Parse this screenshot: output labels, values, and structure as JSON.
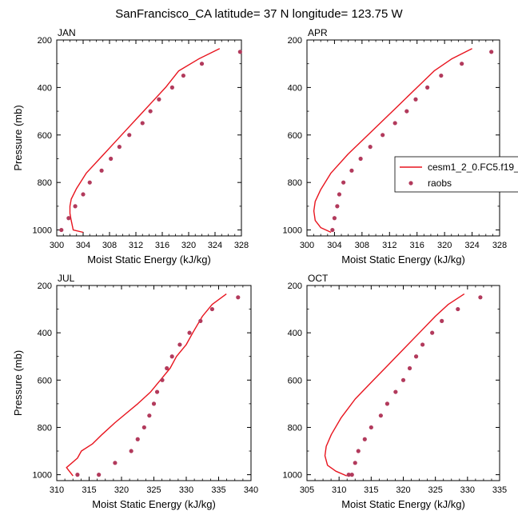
{
  "title": "SanFrancisco_CA  latitude= 37 N longitude= 123.75 W",
  "colors": {
    "model": "#e8141e",
    "obs": "#b23a5c",
    "axis": "#000000"
  },
  "legend": {
    "model_label": "cesm1_2_0.FC5.f19_",
    "obs_label": "raobs"
  },
  "chart_data": [
    {
      "type": "line",
      "panel": "JAN",
      "title": "JAN",
      "xlabel": "Moist Static Energy (kJ/kg)",
      "ylabel": "Pressure (mb)",
      "xlim": [
        300,
        328
      ],
      "ylim": [
        1025,
        200
      ],
      "xticks": [
        300,
        304,
        308,
        312,
        316,
        320,
        324,
        328
      ],
      "yticks": [
        200,
        400,
        600,
        800,
        1000
      ],
      "series": [
        {
          "name": "cesm1_2_0.FC5.f19_",
          "kind": "line",
          "x": [
            324.7,
            321.5,
            318.5,
            316.5,
            314.5,
            312.5,
            310.5,
            308.5,
            306.5,
            304.5,
            303.0,
            302.2,
            302.0,
            302.0,
            302.2,
            302.5,
            304.0
          ],
          "y": [
            236,
            280,
            330,
            400,
            460,
            520,
            580,
            640,
            700,
            760,
            825,
            870,
            900,
            930,
            960,
            1000,
            1010
          ]
        },
        {
          "name": "raobs",
          "kind": "scatter",
          "x": [
            327.8,
            322.0,
            319.2,
            317.5,
            315.5,
            314.2,
            313.0,
            311.0,
            309.5,
            308.2,
            306.8,
            305.0,
            304.0,
            302.8,
            301.8,
            300.7
          ],
          "y": [
            250,
            300,
            350,
            400,
            450,
            500,
            550,
            600,
            650,
            700,
            750,
            800,
            850,
            900,
            950,
            1000
          ]
        }
      ]
    },
    {
      "type": "line",
      "panel": "APR",
      "title": "APR",
      "xlabel": "Moist Static Energy (kJ/kg)",
      "ylabel": "",
      "xlim": [
        300,
        328
      ],
      "ylim": [
        1025,
        200
      ],
      "xticks": [
        300,
        304,
        308,
        312,
        316,
        320,
        324,
        328
      ],
      "yticks": [
        200,
        400,
        600,
        800,
        1000
      ],
      "series": [
        {
          "name": "cesm1_2_0.FC5.f19_",
          "kind": "line",
          "x": [
            324.0,
            321.0,
            318.5,
            316.0,
            313.5,
            311.0,
            308.5,
            306.0,
            303.5,
            302.0,
            301.2,
            301.0,
            301.2,
            302.0,
            303.5
          ],
          "y": [
            236,
            280,
            330,
            400,
            470,
            540,
            610,
            680,
            760,
            830,
            880,
            920,
            960,
            990,
            1010
          ]
        },
        {
          "name": "raobs",
          "kind": "scatter",
          "x": [
            326.8,
            322.5,
            319.5,
            317.5,
            315.8,
            314.5,
            312.8,
            311.0,
            309.2,
            307.8,
            306.5,
            305.3,
            304.7,
            304.4,
            304.0,
            303.7
          ],
          "y": [
            250,
            300,
            350,
            400,
            450,
            500,
            550,
            600,
            650,
            700,
            750,
            800,
            850,
            900,
            950,
            1000
          ]
        }
      ]
    },
    {
      "type": "line",
      "panel": "JUL",
      "title": "JUL",
      "xlabel": "Moist Static Energy (kJ/kg)",
      "ylabel": "Pressure (mb)",
      "xlim": [
        310,
        340
      ],
      "ylim": [
        1025,
        200
      ],
      "xticks": [
        310,
        315,
        320,
        325,
        330,
        335,
        340
      ],
      "yticks": [
        200,
        400,
        600,
        800,
        1000
      ],
      "series": [
        {
          "name": "cesm1_2_0.FC5.f19_",
          "kind": "line",
          "x": [
            336.2,
            334.0,
            332.5,
            331.0,
            330.0,
            328.5,
            327.5,
            326.0,
            324.5,
            322.5,
            319.0,
            317.0,
            315.5,
            313.8,
            313.2,
            311.5,
            312.5
          ],
          "y": [
            236,
            280,
            330,
            400,
            450,
            500,
            550,
            600,
            650,
            700,
            780,
            830,
            870,
            900,
            930,
            970,
            1005
          ]
        },
        {
          "name": "raobs",
          "kind": "scatter",
          "x": [
            338.0,
            334.0,
            332.2,
            330.5,
            329.0,
            327.8,
            327.0,
            326.3,
            325.5,
            325.0,
            324.3,
            323.5,
            322.5,
            321.5,
            319.0,
            316.5,
            313.2
          ],
          "y": [
            250,
            300,
            350,
            400,
            450,
            500,
            550,
            600,
            650,
            700,
            750,
            800,
            850,
            900,
            950,
            1000,
            1000
          ]
        }
      ]
    },
    {
      "type": "line",
      "panel": "OCT",
      "title": "OCT",
      "xlabel": "Moist Static Energy (kJ/kg)",
      "ylabel": "",
      "xlim": [
        305,
        335
      ],
      "ylim": [
        1025,
        200
      ],
      "xticks": [
        305,
        310,
        315,
        320,
        325,
        330,
        335
      ],
      "yticks": [
        200,
        400,
        600,
        800,
        1000
      ],
      "series": [
        {
          "name": "cesm1_2_0.FC5.f19_",
          "kind": "line",
          "x": [
            329.5,
            327.0,
            325.0,
            322.5,
            320.0,
            317.5,
            315.0,
            312.5,
            310.3,
            308.8,
            308.0,
            307.8,
            308.2,
            309.5,
            311.2
          ],
          "y": [
            236,
            280,
            330,
            400,
            470,
            540,
            610,
            680,
            760,
            830,
            880,
            920,
            960,
            985,
            1005
          ]
        },
        {
          "name": "raobs",
          "kind": "scatter",
          "x": [
            332.0,
            328.5,
            326.0,
            324.5,
            323.0,
            322.0,
            321.0,
            320.0,
            318.8,
            317.5,
            316.5,
            315.0,
            314.0,
            313.0,
            312.5,
            312.0,
            311.5
          ],
          "y": [
            250,
            300,
            350,
            400,
            450,
            500,
            550,
            600,
            650,
            700,
            750,
            800,
            850,
            900,
            950,
            1000,
            1000
          ]
        }
      ]
    }
  ]
}
